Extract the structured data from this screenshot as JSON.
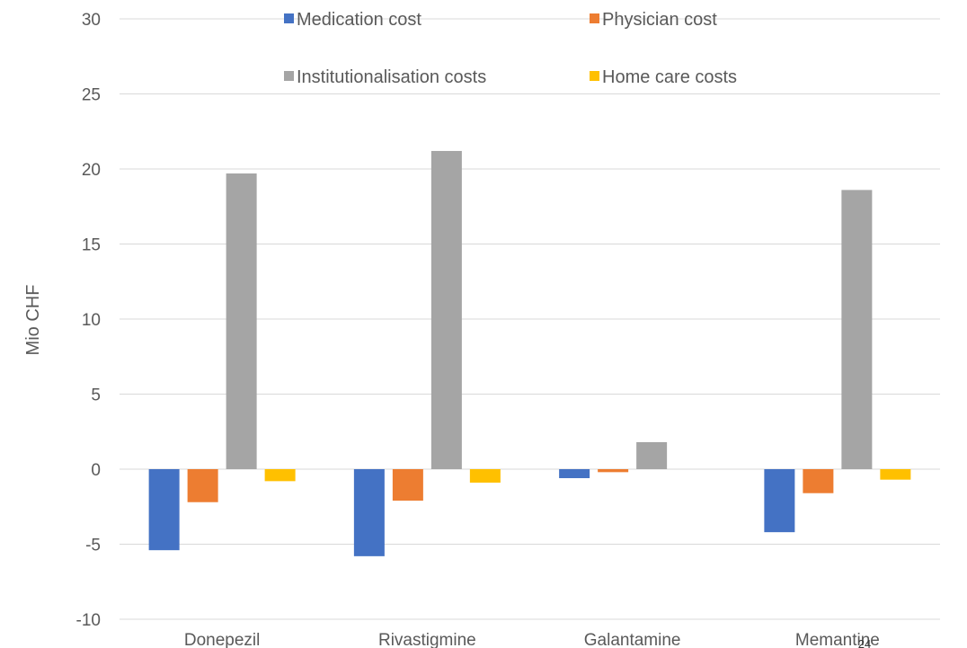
{
  "chart_data": {
    "type": "bar",
    "title": "",
    "xlabel": "",
    "ylabel": "Mio CHF",
    "ylim": [
      -10,
      30
    ],
    "yticks": [
      -10,
      -5,
      0,
      5,
      10,
      15,
      20,
      25,
      30
    ],
    "grid": true,
    "legend_position": "top",
    "categories": [
      "Donepezil",
      "Rivastigmine",
      "Galantamine",
      "Memantine"
    ],
    "series": [
      {
        "name": "Medication cost",
        "color": "#4472C4",
        "values": [
          -5.4,
          -5.8,
          -0.6,
          -4.2
        ]
      },
      {
        "name": "Physician cost",
        "color": "#ED7D31",
        "values": [
          -2.2,
          -2.1,
          -0.2,
          -1.6
        ]
      },
      {
        "name": "Institutionalisation costs",
        "color": "#A5A5A5",
        "values": [
          19.7,
          21.2,
          1.8,
          18.6
        ]
      },
      {
        "name": "Home care costs",
        "color": "#FFC000",
        "values": [
          -0.8,
          -0.9,
          0,
          -0.7
        ]
      }
    ]
  },
  "page_number": "24"
}
